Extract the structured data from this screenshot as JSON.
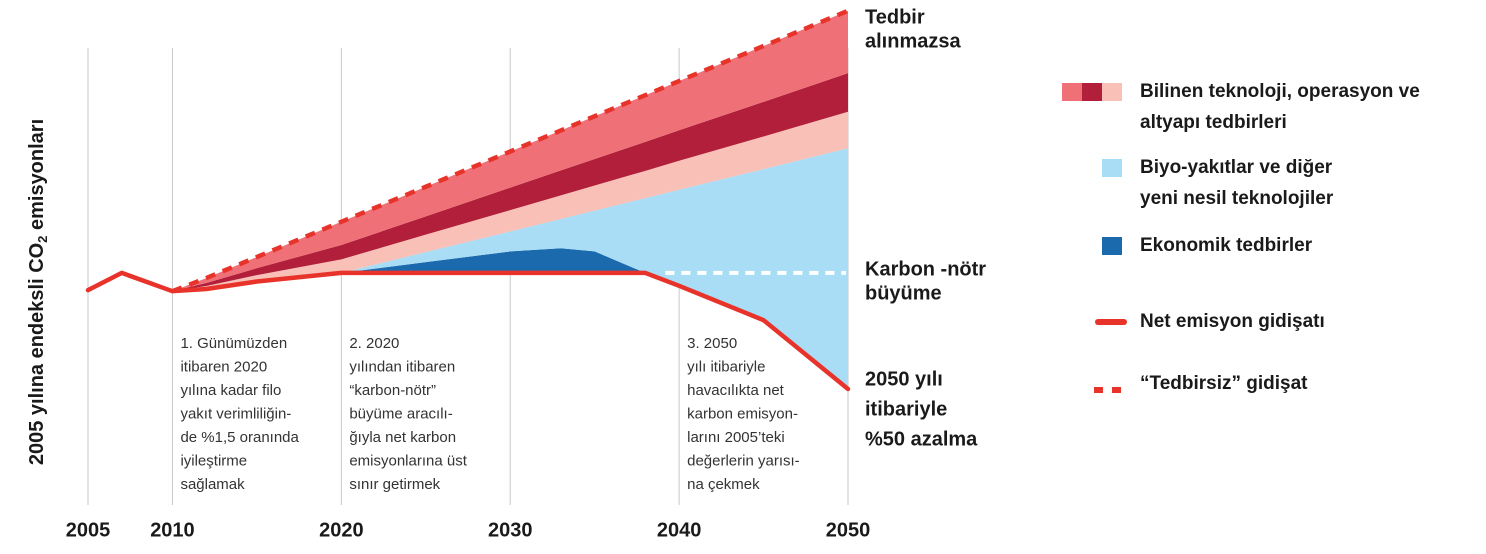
{
  "chart_data": {
    "type": "stacked-area",
    "y_label": [
      "2005 yılına endeksli CO",
      "2",
      " emisyonları"
    ],
    "x": [
      2005,
      2007,
      2010,
      2012,
      2015,
      2020,
      2025,
      2030,
      2033,
      2035,
      2038,
      2040,
      2045,
      2050
    ],
    "xlim": [
      2005,
      2050
    ],
    "xticks": [
      2005,
      2010,
      2020,
      2030,
      2040,
      2050
    ],
    "ylim": [
      0,
      235
    ],
    "grid": true,
    "base": {
      "color": "#e8332a",
      "values": [
        100,
        108,
        99.5,
        100.5,
        104,
        108,
        108,
        108,
        108,
        108,
        108,
        102,
        86,
        54
      ]
    },
    "series": [
      {
        "color": "#1a6aad",
        "values": [
          0,
          0,
          0,
          0,
          0,
          0,
          5,
          10,
          11.5,
          10,
          0,
          0,
          0,
          0
        ]
      },
      {
        "color": "#a9dcf5",
        "values": [
          0,
          0,
          0,
          0,
          0,
          0,
          4.7,
          9.3,
          13.6,
          19,
          34.8,
          44.7,
          70.3,
          112
        ]
      },
      {
        "color": "#f9c0b8",
        "values": [
          0,
          0,
          0,
          1.4,
          3.0,
          6.3,
          8.1,
          9.9,
          11.0,
          11.7,
          12.7,
          13.5,
          15.2,
          17
        ]
      },
      {
        "color": "#b11f3a",
        "values": [
          0,
          0,
          0,
          1.4,
          3.2,
          6.7,
          8.5,
          10.5,
          11.6,
          12.3,
          13.5,
          14.2,
          16.1,
          18
        ]
      },
      {
        "color": "#f07078",
        "values": [
          0,
          0,
          0,
          2.3,
          5.2,
          10.8,
          13.8,
          16.8,
          18.6,
          19.9,
          21.7,
          22.9,
          26.0,
          29
        ]
      }
    ],
    "no_action": {
      "color": "#e8332a",
      "values": [
        null,
        null,
        99.5,
        105.6,
        115.4,
        131.8,
        148.1,
        164.5,
        174.3,
        180.9,
        190.7,
        197.3,
        213.6,
        230
      ]
    },
    "neutral_line": {
      "x": [
        2038,
        2050
      ],
      "value": 108,
      "color": "#ffffff"
    },
    "right_labels": [
      {
        "lines": [
          "Tedbir",
          "alınmazsa"
        ]
      },
      {
        "lines": [
          "Karbon -nötr",
          "büyüme"
        ]
      },
      {
        "lines": [
          "2050 yılı",
          "itibariyle",
          "%50 azalma"
        ]
      }
    ],
    "phases": [
      {
        "x": 2010,
        "lines": [
          "1. Günümüzden",
          "itibaren 2020",
          "yılına kadar filo",
          "yakıt verimliliğin-",
          "de %1,5 oranında",
          "iyileştirme",
          "sağlamak"
        ]
      },
      {
        "x": 2020,
        "lines": [
          "2. 2020",
          "yılından itibaren",
          "“karbon-nötr”",
          "büyüme aracılı-",
          "ğıyla net karbon",
          "emisyonlarına üst",
          "sınır getirmek"
        ]
      },
      {
        "x": 2040,
        "lines": [
          "3. 2050",
          "yılı itibariyle",
          "havacılıkta net",
          "karbon emisyon-",
          "larını 2005’teki",
          "değerlerin yarısı-",
          "na çekmek"
        ]
      }
    ],
    "legend": [
      {
        "lines": [
          "Bilinen teknoloji, operasyon ve",
          "altyapı tedbirleri"
        ],
        "colors": [
          "#f07078",
          "#b11f3a",
          "#f9c0b8"
        ]
      },
      {
        "lines": [
          "Biyo-yakıtlar ve diğer",
          "yeni nesil teknolojiler"
        ],
        "colors": [
          "#a9dcf5"
        ]
      },
      {
        "lines": [
          "Ekonomik tedbirler"
        ],
        "colors": [
          "#1a6aad"
        ]
      },
      {
        "lines": [
          "Net emisyon gidişatı"
        ],
        "colors": [
          "#e8332a"
        ]
      },
      {
        "lines": [
          "“Tedbirsiz” gidişat"
        ],
        "colors": [
          "#e8332a"
        ]
      }
    ]
  }
}
